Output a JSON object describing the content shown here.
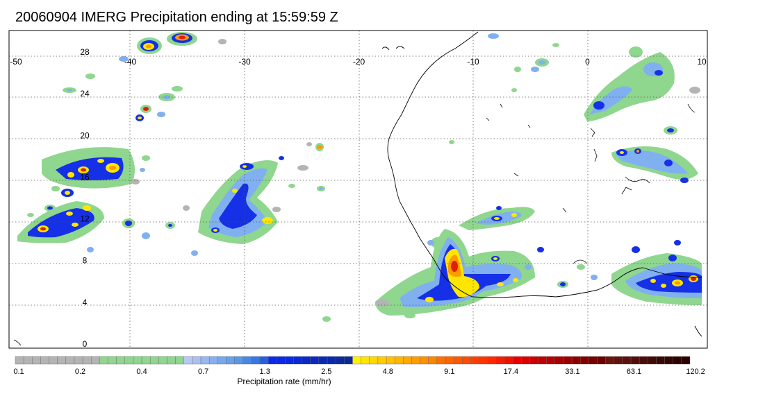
{
  "title": "20060904 IMERG Precipitation ending at 15:59:59 Z",
  "map": {
    "lon_ticks": [
      "-50",
      "-40",
      "-30",
      "-20",
      "-10",
      "0",
      "10"
    ],
    "lon_values": [
      -50,
      -40,
      -30,
      -20,
      -10,
      0,
      10
    ],
    "lat_ticks": [
      "28",
      "24",
      "20",
      "16",
      "12",
      "8",
      "4",
      "0"
    ],
    "lat_values": [
      28,
      24,
      20,
      16,
      12,
      8,
      4,
      0
    ],
    "lon_range": [
      -50,
      10
    ],
    "lat_range": [
      -0.5,
      30.5
    ],
    "grid": "dotted"
  },
  "colorbar": {
    "title": "Precipitation rate (mm/hr)",
    "labels": [
      "0.1",
      "0.2",
      "0.4",
      "0.7",
      "1.3",
      "2.5",
      "4.8",
      "9.1",
      "17.4",
      "33.1",
      "63.1",
      "120.2"
    ],
    "colors": [
      "#b4b4b4",
      "#b4b4b4",
      "#b4b4b4",
      "#b4b4b4",
      "#b4b4b4",
      "#b4b4b4",
      "#b4b4b4",
      "#b4b4b4",
      "#b4b4b4",
      "#b4b4b4",
      "#8fd68f",
      "#8fd68f",
      "#8fd68f",
      "#8fd68f",
      "#8fd68f",
      "#8fd68f",
      "#8fd68f",
      "#8fd68f",
      "#8fd68f",
      "#8fd68f",
      "#b8c8f4",
      "#a8c0f2",
      "#98b8f0",
      "#88b0ee",
      "#78a8ec",
      "#68a0ea",
      "#5898e8",
      "#4888e4",
      "#3878e0",
      "#2860dc",
      "#0a28f0",
      "#0a28e6",
      "#0a28dc",
      "#0a28d2",
      "#0a28c8",
      "#0a28be",
      "#0a28b4",
      "#0a28aa",
      "#0a28a0",
      "#0a2896",
      "#fff000",
      "#ffe400",
      "#ffd800",
      "#ffcc00",
      "#ffc000",
      "#ffb400",
      "#ffa800",
      "#ff9c00",
      "#ff9000",
      "#ff8400",
      "#ff7000",
      "#ff6400",
      "#ff5800",
      "#ff4c00",
      "#ff4000",
      "#ff3400",
      "#ff2800",
      "#f81c00",
      "#f01000",
      "#e80000",
      "#d80000",
      "#cc0000",
      "#c00000",
      "#b40000",
      "#a80000",
      "#9c0000",
      "#900000",
      "#840000",
      "#780000",
      "#6c0000",
      "#6a1410",
      "#62120e",
      "#5a100c",
      "#520e0a",
      "#4a0c08",
      "#420a06",
      "#3a0804",
      "#320602",
      "#2e0401",
      "#2a0200"
    ]
  },
  "colors": {
    "gray": "#b4b4b4",
    "green": "#8fd68f",
    "light_blue": "#80b0f0",
    "blue": "#1530e6",
    "yellow": "#ffe600",
    "orange": "#ff9a00",
    "red": "#e02000"
  }
}
